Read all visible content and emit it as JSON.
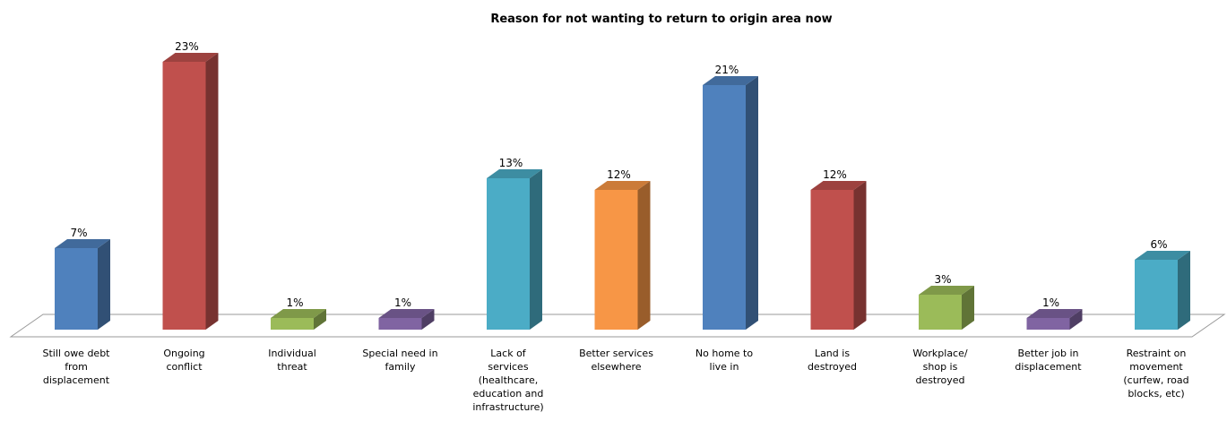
{
  "chart_data": {
    "type": "bar",
    "title": "Reason for not wanting to return to origin area now",
    "categories": [
      "Still owe debt from displacement",
      "Ongoing conflict",
      "Individual threat",
      "Special need in family",
      "Lack of services (healthcare, education and infrastructure)",
      "Better services elsewhere",
      "No home to live in",
      "Land is destroyed",
      "Workplace/ shop is destroyed",
      "Better job in displacement",
      "Restraint on movement (curfew, road blocks, etc)"
    ],
    "category_lines": [
      [
        "Still owe debt",
        "from",
        "displacement"
      ],
      [
        "Ongoing",
        "conflict"
      ],
      [
        "Individual",
        "threat"
      ],
      [
        "Special need in",
        "family"
      ],
      [
        "Lack of",
        "services",
        "(healthcare,",
        "education and",
        "infrastructure)"
      ],
      [
        "Better services",
        "elsewhere"
      ],
      [
        "No home to",
        "live in"
      ],
      [
        "Land is",
        "destroyed"
      ],
      [
        "Workplace/",
        "shop is",
        "destroyed"
      ],
      [
        "Better job in",
        "displacement"
      ],
      [
        "Restraint on",
        "movement",
        "(curfew, road",
        "blocks, etc)"
      ]
    ],
    "values": [
      7,
      23,
      1,
      1,
      13,
      12,
      21,
      12,
      3,
      1,
      6
    ],
    "data_labels": [
      "7%",
      "23%",
      "1%",
      "1%",
      "13%",
      "12%",
      "21%",
      "12%",
      "3%",
      "1%",
      "6%"
    ],
    "ylim": [
      0,
      25
    ],
    "unit": "%",
    "grid": false,
    "legend": "none",
    "colors": [
      "#4F81BD",
      "#C0504D",
      "#9BBB59",
      "#8064A2",
      "#4BACC6",
      "#F79646",
      "#4F81BD",
      "#C0504D",
      "#9BBB59",
      "#8064A2",
      "#4BACC6"
    ]
  }
}
